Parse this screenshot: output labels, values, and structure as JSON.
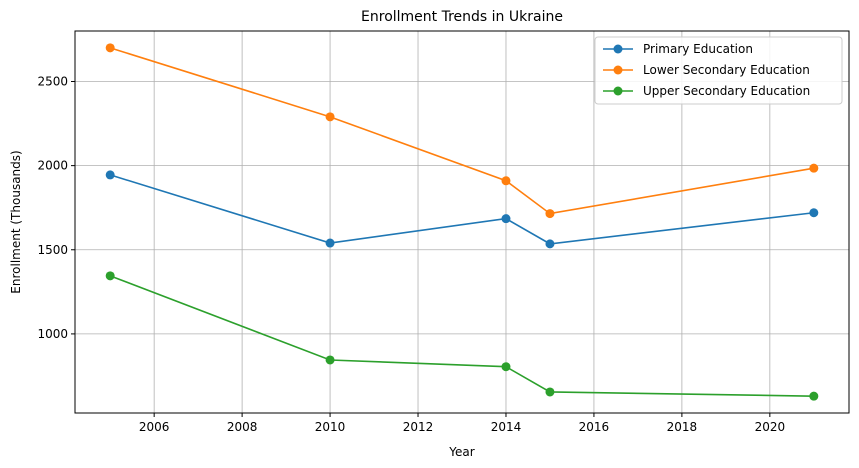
{
  "chart_data": {
    "type": "line",
    "title": "Enrollment Trends in Ukraine",
    "xlabel": "Year",
    "ylabel": "Enrollment (Thousands)",
    "xlim": [
      2004.2,
      2021.8
    ],
    "ylim": [
      530,
      2800
    ],
    "xticks": [
      2006,
      2008,
      2010,
      2012,
      2014,
      2016,
      2018,
      2020
    ],
    "yticks": [
      1000,
      1500,
      2000,
      2500
    ],
    "grid": true,
    "legend_position": "top-right",
    "x": [
      2005,
      2010,
      2014,
      2015,
      2021
    ],
    "series": [
      {
        "name": "Primary Education",
        "color": "#1f77b4",
        "values": [
          1945,
          1540,
          1685,
          1535,
          1720
        ]
      },
      {
        "name": "Lower Secondary Education",
        "color": "#ff7f0e",
        "values": [
          2700,
          2290,
          1910,
          1715,
          1985
        ]
      },
      {
        "name": "Upper Secondary Education",
        "color": "#2ca02c",
        "values": [
          1345,
          845,
          805,
          655,
          630
        ]
      }
    ]
  }
}
